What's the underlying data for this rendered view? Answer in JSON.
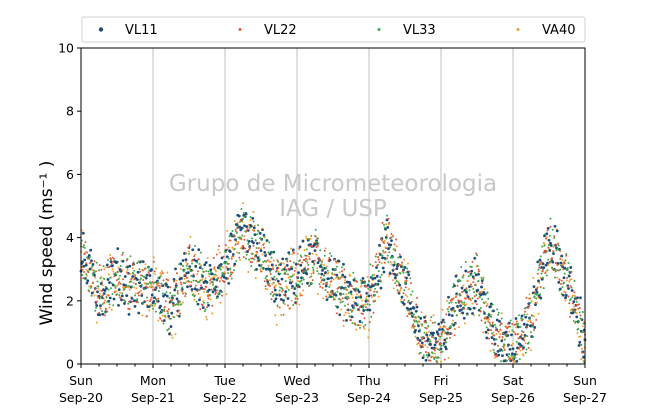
{
  "chart_data": {
    "type": "scatter",
    "ylabel": "Wind speed (ms⁻¹ )",
    "ylim": [
      0,
      10
    ],
    "yticks": [
      "0",
      "2",
      "4",
      "6",
      "8",
      "10"
    ],
    "xlim": [
      "2020-09-20",
      "2020-09-27"
    ],
    "xticks": [
      {
        "day": "Sun",
        "date": "Sep-20"
      },
      {
        "day": "Mon",
        "date": "Sep-21"
      },
      {
        "day": "Tue",
        "date": "Sep-22"
      },
      {
        "day": "Wed",
        "date": "Sep-23"
      },
      {
        "day": "Thu",
        "date": "Sep-24"
      },
      {
        "day": "Fri",
        "date": "Sep-25"
      },
      {
        "day": "Sat",
        "date": "Sep-26"
      },
      {
        "day": "Sun",
        "date": "Sep-27"
      }
    ],
    "grid": "vertical",
    "legend": "top",
    "watermark": [
      "Grupo de Micrometeorologia",
      "IAG / USP"
    ],
    "series": [
      {
        "name": "VL11",
        "color": "#1f4e79"
      },
      {
        "name": "VL22",
        "color": "#e05a3a"
      },
      {
        "name": "VL33",
        "color": "#3aaa4a"
      },
      {
        "name": "VA40",
        "color": "#f5a030"
      }
    ],
    "profile_hours": [
      0,
      6,
      12,
      18,
      24,
      30,
      36,
      42,
      48,
      54,
      60,
      66,
      72,
      78,
      84,
      90,
      96,
      102,
      108,
      114,
      120,
      126,
      132,
      138,
      144,
      150,
      156,
      162,
      168
    ],
    "profile_speed": [
      3.4,
      2.2,
      2.8,
      2.4,
      2.4,
      1.8,
      3.0,
      2.4,
      3.0,
      4.2,
      3.6,
      2.4,
      2.8,
      3.4,
      2.6,
      2.0,
      2.0,
      4.0,
      2.4,
      0.8,
      0.6,
      2.2,
      2.6,
      0.8,
      0.6,
      1.4,
      4.0,
      2.6,
      0.8
    ]
  }
}
